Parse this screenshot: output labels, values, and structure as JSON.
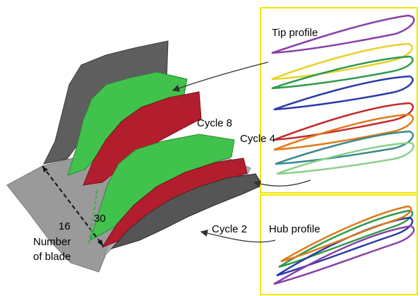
{
  "labels": {
    "tip_profile": "Tip profile",
    "hub_profile": "Hub profile",
    "cycle_8": "Cycle 8",
    "cycle_4": "Cycle 4",
    "cycle_2": "Cycle 2",
    "number_16": "16",
    "number_30": "30",
    "number_of_blade_line1": "Number",
    "number_of_blade_line2": "of blade"
  },
  "colors": {
    "panel_border": "#f2e600",
    "blade_green": "#3fbf4a",
    "blade_red": "#b51c2c",
    "blade_gray": "#5a5a5a",
    "hub_gray": "#9a9a9a",
    "dimension_green": "#2fb83a",
    "profile_purple": "#8a3fa8",
    "profile_yellow": "#e8d22a",
    "profile_green": "#2f9a4a",
    "profile_blue": "#2a3aa8",
    "profile_red": "#c42a2a",
    "profile_orange": "#e07a1a",
    "profile_teal": "#3a8a8a"
  }
}
